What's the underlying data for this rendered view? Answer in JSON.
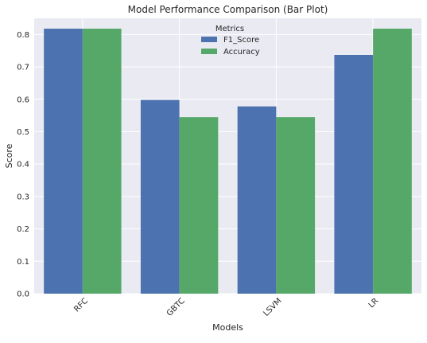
{
  "chart_data": {
    "type": "bar",
    "title": "Model Performance Comparison (Bar Plot)",
    "xlabel": "Models",
    "ylabel": "Score",
    "categories": [
      "RFC",
      "GBTC",
      "LSVM",
      "LR"
    ],
    "series": [
      {
        "name": "F1_Score",
        "values": [
          0.818,
          0.598,
          0.578,
          0.737
        ],
        "color": "#4c72b0"
      },
      {
        "name": "Accuracy",
        "values": [
          0.818,
          0.545,
          0.545,
          0.818
        ],
        "color": "#55a868"
      }
    ],
    "ylim": [
      0,
      0.85
    ],
    "yticks": [
      0.0,
      0.1,
      0.2,
      0.3,
      0.4,
      0.5,
      0.6,
      0.7,
      0.8
    ],
    "ytick_labels": [
      "0.0",
      "0.1",
      "0.2",
      "0.3",
      "0.4",
      "0.5",
      "0.6",
      "0.7",
      "0.8"
    ],
    "legend": {
      "title": "Metrics",
      "placement": "top-center"
    },
    "grid": true,
    "colors": {
      "plot_background": "#eaeaf2",
      "grid": "#ffffff"
    }
  }
}
